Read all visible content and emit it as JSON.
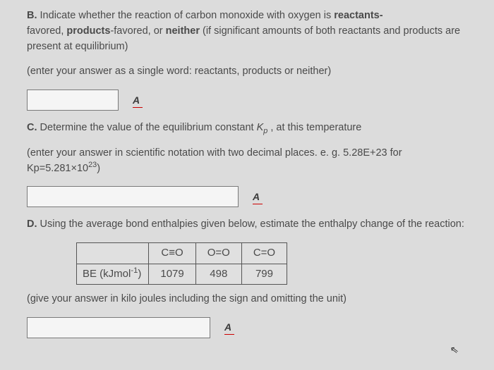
{
  "partB": {
    "label": "B.",
    "text1": "Indicate whether the reaction of carbon monoxide with oxygen is ",
    "kw1": "reactants-",
    "text2": "favored, ",
    "kw2": "products",
    "text3": "-favored, or ",
    "kw3": "neither",
    "text4": " (if significant amounts of both reactants and products are present at equilibrium)",
    "hint": "(enter your answer as a single word: reactants, products or neither)"
  },
  "partC": {
    "label": "C.",
    "text1": "Determine the value of the equilibrium constant ",
    "text2": " , at this temperature",
    "hint": "(enter your answer in scientific notation with two decimal places. e. g. 5.28E+23 for Kp=5.281×10"
  },
  "partD": {
    "label": "D.",
    "text": "Using the average bond enthalpies given below, estimate the enthalpy change of the reaction:",
    "hint": "(give your answer in kilo joules including the sign and omitting the unit)"
  },
  "table": {
    "rowhead": "BE (kJmol",
    "headers": [
      "C≡O",
      "O=O",
      "C=O"
    ],
    "values": [
      "1079",
      "498",
      "799"
    ]
  },
  "spell": "A"
}
